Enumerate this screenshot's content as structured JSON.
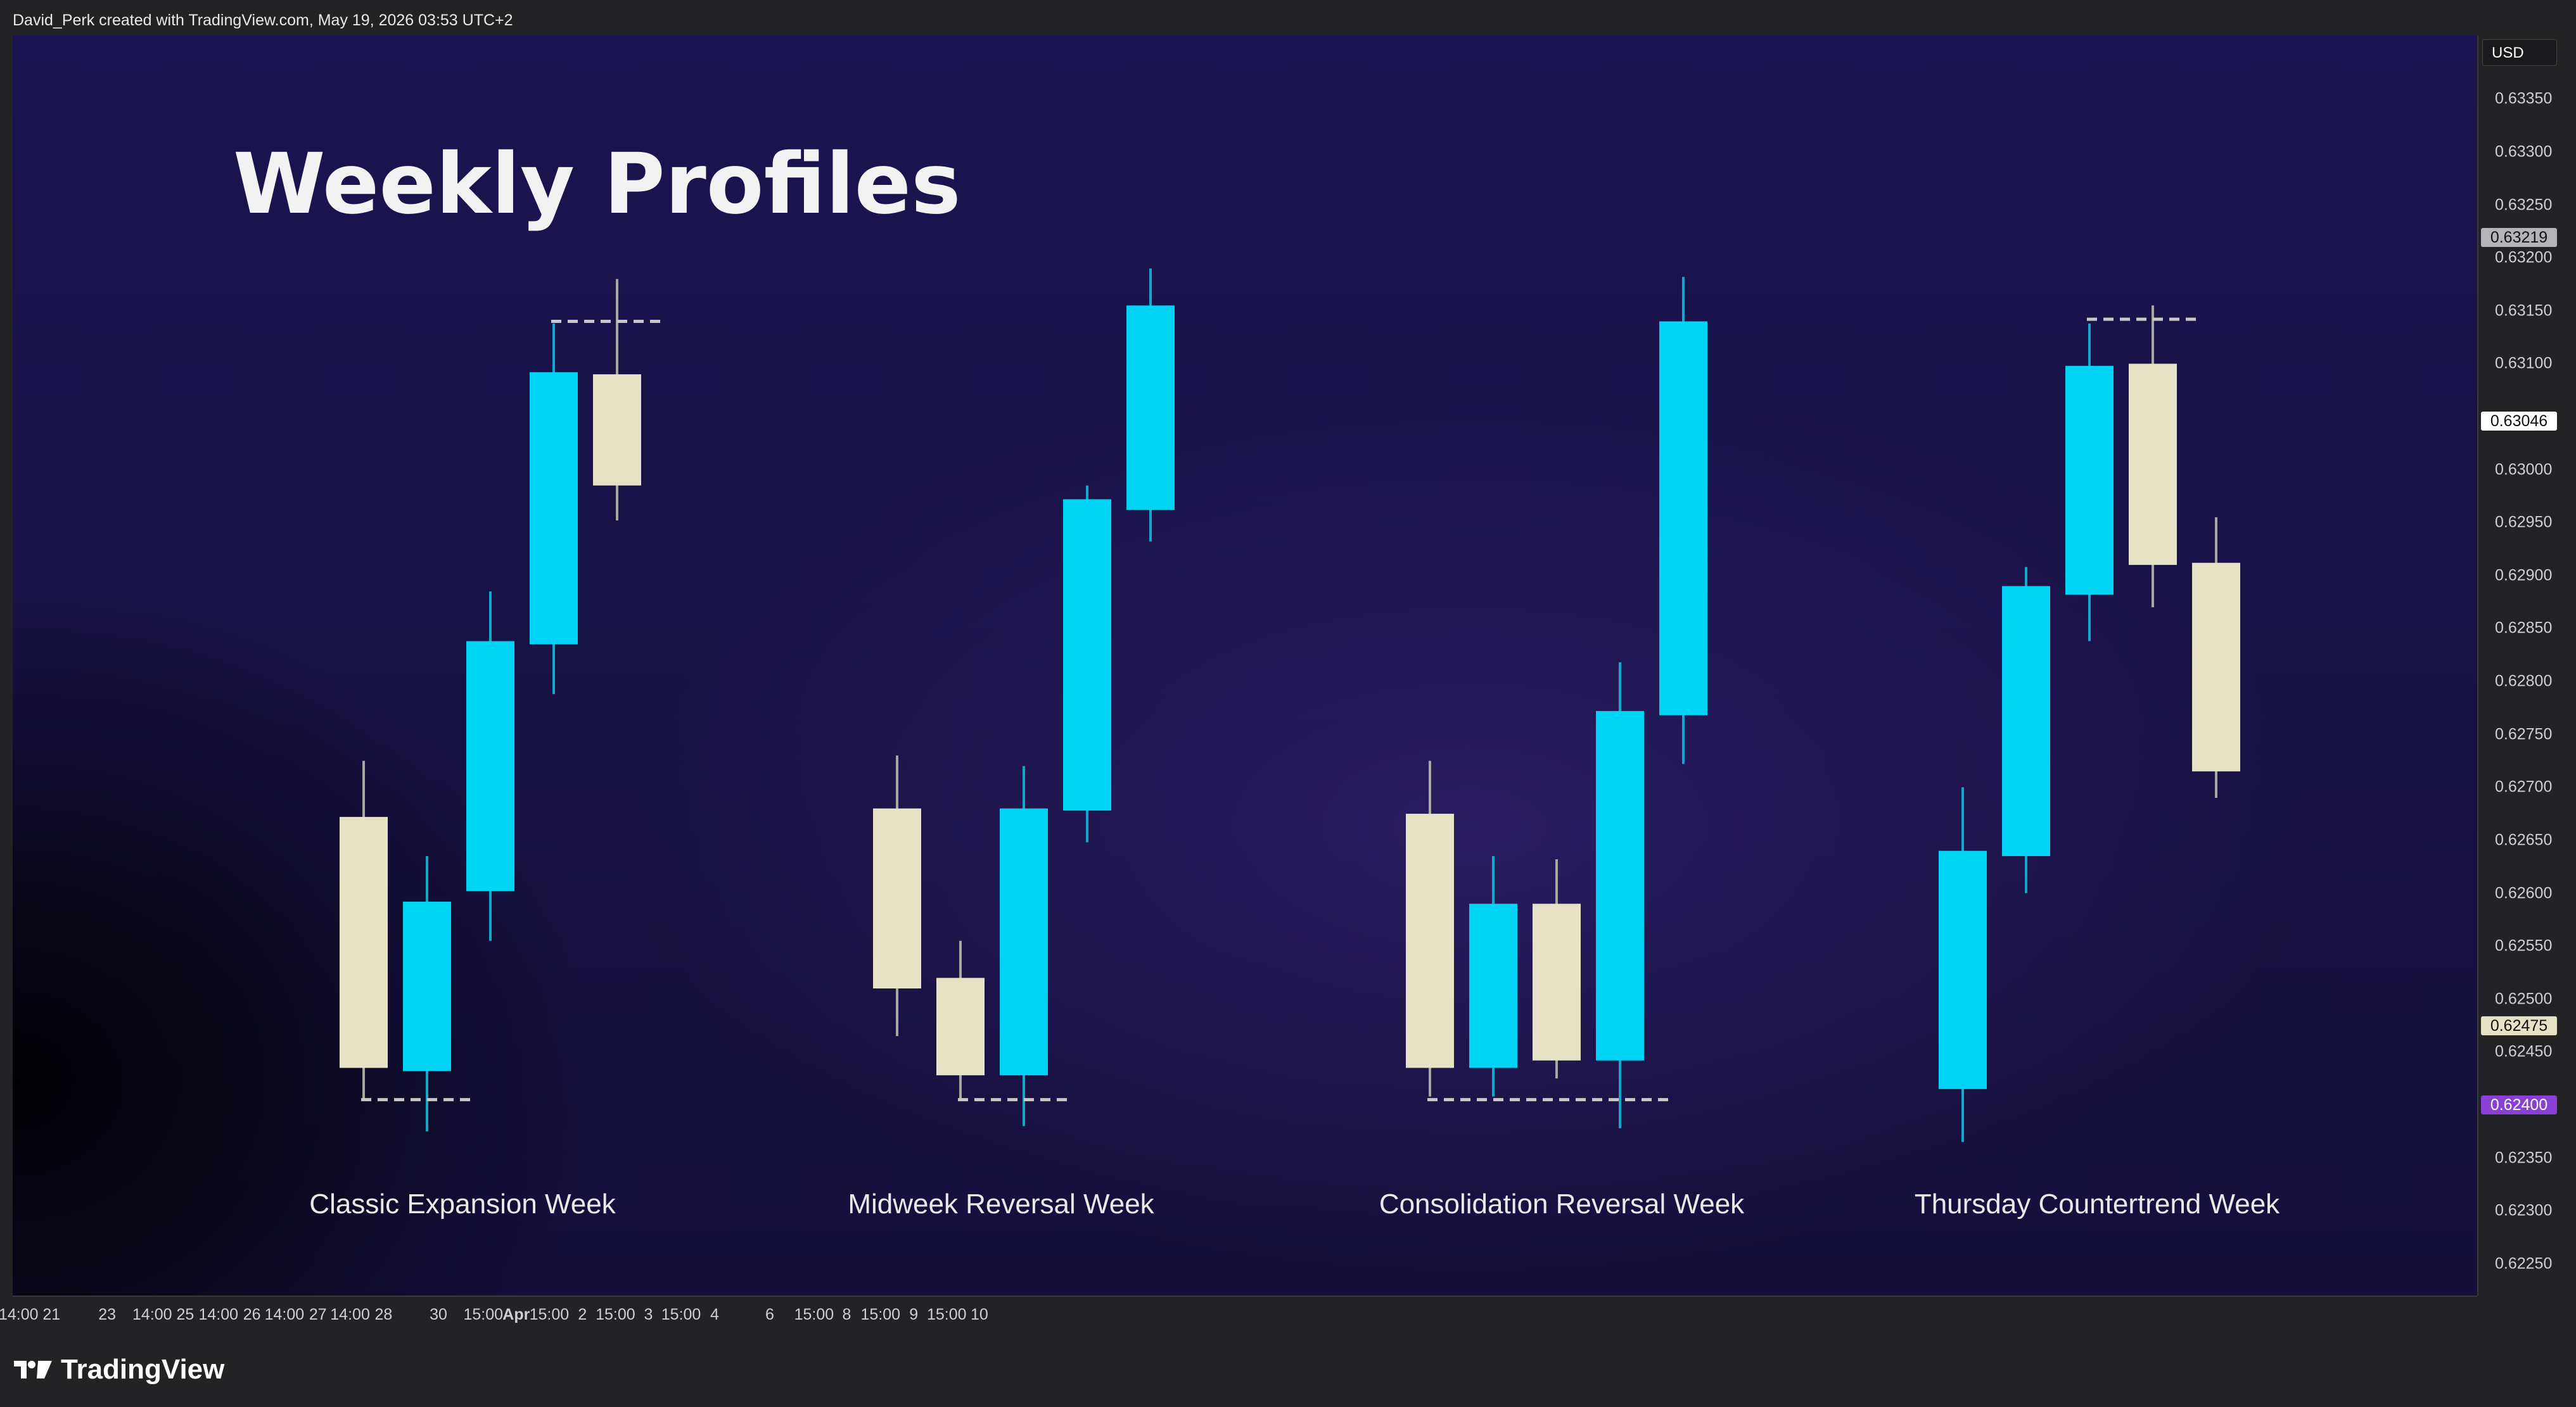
{
  "caption": "David_Perk created with TradingView.com, May 19, 2026 03:53 UTC+2",
  "currency": "USD",
  "brand": "TradingView",
  "colors": {
    "bull": "#00d4f5",
    "bear": "#e6e2c6",
    "wick_bull": "#12a9c8",
    "wick_bear": "#a9a8a0",
    "ref_line": "#c8c8c8"
  },
  "chart_data": {
    "type": "candlestick",
    "title": "Weekly Profiles",
    "ylim": [
      0.6222,
      0.6341
    ],
    "grid": false,
    "y_ticks": [
      {
        "label": "0.63350",
        "value": 0.6335
      },
      {
        "label": "0.63300",
        "value": 0.633
      },
      {
        "label": "0.63250",
        "value": 0.6325
      },
      {
        "label": "0.63200",
        "value": 0.632
      },
      {
        "label": "0.63150",
        "value": 0.6315
      },
      {
        "label": "0.63100",
        "value": 0.631
      },
      {
        "label": "0.63000",
        "value": 0.63
      },
      {
        "label": "0.62950",
        "value": 0.6295
      },
      {
        "label": "0.62900",
        "value": 0.629
      },
      {
        "label": "0.62850",
        "value": 0.6285
      },
      {
        "label": "0.62800",
        "value": 0.628
      },
      {
        "label": "0.62750",
        "value": 0.6275
      },
      {
        "label": "0.62700",
        "value": 0.627
      },
      {
        "label": "0.62650",
        "value": 0.6265
      },
      {
        "label": "0.62600",
        "value": 0.626
      },
      {
        "label": "0.62550",
        "value": 0.6255
      },
      {
        "label": "0.62500",
        "value": 0.625
      },
      {
        "label": "0.62450",
        "value": 0.6245
      },
      {
        "label": "0.62350",
        "value": 0.6235
      },
      {
        "label": "0.62300",
        "value": 0.623
      },
      {
        "label": "0.62250",
        "value": 0.6225
      }
    ],
    "price_badges": [
      {
        "label": "0.63219",
        "value": 0.63219,
        "bg": "#b4b4b8",
        "fg": "#111111"
      },
      {
        "label": "0.63046",
        "value": 0.63046,
        "bg": "#ffffff",
        "fg": "#111111"
      },
      {
        "label": "0.62475",
        "value": 0.62475,
        "bg": "#e6e2c6",
        "fg": "#111111"
      },
      {
        "label": "0.62400",
        "value": 0.624,
        "bg": "#8a3fd6",
        "fg": "#ffffff"
      }
    ],
    "x_ticks": [
      {
        "label": "14:00",
        "frac": 0.0072
      },
      {
        "label": "21",
        "frac": 0.02
      },
      {
        "label": "23",
        "frac": 0.0416
      },
      {
        "label": "14:00",
        "frac": 0.0591
      },
      {
        "label": "25",
        "frac": 0.0719
      },
      {
        "label": "14:00",
        "frac": 0.0848
      },
      {
        "label": "26",
        "frac": 0.0978
      },
      {
        "label": "14:00",
        "frac": 0.1104
      },
      {
        "label": "27",
        "frac": 0.1234
      },
      {
        "label": "14:00",
        "frac": 0.1359
      },
      {
        "label": "28",
        "frac": 0.1489
      },
      {
        "label": "30",
        "frac": 0.1702
      },
      {
        "label": "15:00",
        "frac": 0.1876
      },
      {
        "label": "Apr",
        "frac": 0.2004,
        "bold": true
      },
      {
        "label": "15:00",
        "frac": 0.2132
      },
      {
        "label": "2",
        "frac": 0.2261
      },
      {
        "label": "15:00",
        "frac": 0.2389
      },
      {
        "label": "3",
        "frac": 0.2517
      },
      {
        "label": "15:00",
        "frac": 0.2644
      },
      {
        "label": "4",
        "frac": 0.2774
      },
      {
        "label": "6",
        "frac": 0.2988
      },
      {
        "label": "15:00",
        "frac": 0.316
      },
      {
        "label": "8",
        "frac": 0.3287
      },
      {
        "label": "15:00",
        "frac": 0.3418
      },
      {
        "label": "9",
        "frac": 0.3547
      },
      {
        "label": "15:00",
        "frac": 0.3675
      },
      {
        "label": "10",
        "frac": 0.3802
      }
    ],
    "groups": [
      {
        "label": "Classic Expansion Week",
        "candles": [
          {
            "o": 0.62672,
            "h": 0.62725,
            "l": 0.62405,
            "c": 0.62435
          },
          {
            "o": 0.62432,
            "h": 0.62635,
            "l": 0.62375,
            "c": 0.62592
          },
          {
            "o": 0.62602,
            "h": 0.62885,
            "l": 0.62555,
            "c": 0.62838
          },
          {
            "o": 0.62835,
            "h": 0.63138,
            "l": 0.62788,
            "c": 0.63092
          },
          {
            "o": 0.6309,
            "h": 0.6318,
            "l": 0.62952,
            "c": 0.62985
          }
        ],
        "levels": [
          {
            "value": 0.62405,
            "from": 0,
            "to": 1
          },
          {
            "value": 0.6314,
            "from": 3,
            "to": 4
          }
        ]
      },
      {
        "label": "Midweek Reversal Week",
        "candles": [
          {
            "o": 0.6268,
            "h": 0.6273,
            "l": 0.62465,
            "c": 0.6251
          },
          {
            "o": 0.6252,
            "h": 0.62555,
            "l": 0.62405,
            "c": 0.62428
          },
          {
            "o": 0.62428,
            "h": 0.6272,
            "l": 0.6238,
            "c": 0.6268
          },
          {
            "o": 0.62678,
            "h": 0.62985,
            "l": 0.62648,
            "c": 0.62972
          },
          {
            "o": 0.62962,
            "h": 0.6319,
            "l": 0.62932,
            "c": 0.63155
          }
        ],
        "levels": [
          {
            "value": 0.62405,
            "from": 1,
            "to": 2
          }
        ]
      },
      {
        "label": "Consolidation Reversal Week",
        "candles": [
          {
            "o": 0.62675,
            "h": 0.62725,
            "l": 0.62408,
            "c": 0.62435
          },
          {
            "o": 0.62435,
            "h": 0.62635,
            "l": 0.62408,
            "c": 0.6259
          },
          {
            "o": 0.6259,
            "h": 0.62632,
            "l": 0.62425,
            "c": 0.62442
          },
          {
            "o": 0.62442,
            "h": 0.62818,
            "l": 0.62378,
            "c": 0.62772
          },
          {
            "o": 0.62768,
            "h": 0.63182,
            "l": 0.62722,
            "c": 0.6314
          }
        ],
        "levels": [
          {
            "value": 0.62405,
            "from": 0,
            "to": 3
          }
        ]
      },
      {
        "label": "Thursday Countertrend Week",
        "candles": [
          {
            "o": 0.62415,
            "h": 0.627,
            "l": 0.62365,
            "c": 0.6264
          },
          {
            "o": 0.62635,
            "h": 0.62908,
            "l": 0.626,
            "c": 0.6289
          },
          {
            "o": 0.62882,
            "h": 0.63138,
            "l": 0.62838,
            "c": 0.63098
          },
          {
            "o": 0.631,
            "h": 0.63155,
            "l": 0.6287,
            "c": 0.6291
          },
          {
            "o": 0.62912,
            "h": 0.62955,
            "l": 0.6269,
            "c": 0.62715
          }
        ],
        "levels": [
          {
            "value": 0.63142,
            "from": 2,
            "to": 3
          }
        ]
      }
    ]
  }
}
